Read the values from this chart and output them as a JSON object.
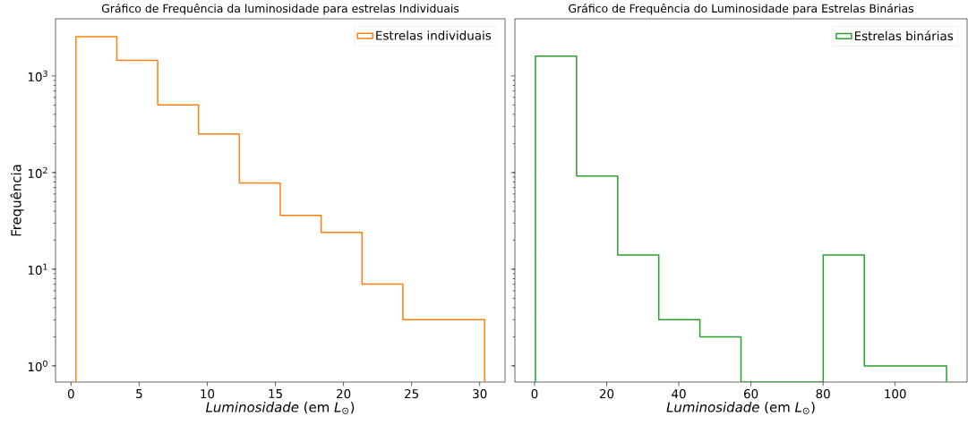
{
  "chart_data": [
    {
      "type": "histogram",
      "title": "Gráfico de Frequência da luminosidade para estrelas Individuais",
      "xlabel": "*Luminosidade* (em *L*$_{⊙}$)",
      "ylabel": "Frequência",
      "bins": [
        0.36,
        3.36,
        6.36,
        9.36,
        12.36,
        15.36,
        18.36,
        21.36,
        24.36,
        27.36,
        30.36
      ],
      "series": [
        {
          "name": "Estrelas individuais",
          "color": "#ff7f0e",
          "values": [
            2550,
            1450,
            500,
            250,
            78,
            36,
            24,
            7,
            3,
            3
          ]
        }
      ],
      "xlim": [
        -1.14,
        31.86
      ],
      "ylim": [
        0.68,
        3900
      ],
      "xticks": [
        0,
        5,
        10,
        15,
        20,
        25,
        30
      ],
      "yticks": [
        {
          "value": 1,
          "label": "10$^{0}$"
        },
        {
          "value": 10,
          "label": "10$^{1}$"
        },
        {
          "value": 100,
          "label": "10$^{2}$"
        },
        {
          "value": 1000,
          "label": "10$^{3}$"
        }
      ],
      "log": "y",
      "legend": "top right"
    },
    {
      "type": "histogram",
      "title": "Gráfico de Frequência do Luminosidade para Estrelas Binárias",
      "xlabel": "*Luminosidade* (em *L*$_{⊙}$)",
      "bins": [
        0.25,
        11.65,
        23.05,
        34.45,
        45.85,
        57.25,
        68.65,
        80.05,
        91.45,
        102.85,
        114.25
      ],
      "series": [
        {
          "name": "Estrelas binárias",
          "color": "#2ca02c",
          "values": [
            1600,
            92,
            14,
            3,
            2,
            null,
            null,
            14,
            1,
            1
          ]
        }
      ],
      "xlim": [
        -5.45,
        119.95
      ],
      "ylim": [
        0.68,
        3900
      ],
      "xticks": [
        0,
        20,
        40,
        60,
        80,
        100
      ],
      "yticks": [
        {
          "value": 1,
          "label": null
        },
        {
          "value": 10,
          "label": null
        },
        {
          "value": 100,
          "label": null
        },
        {
          "value": 1000,
          "label": null
        }
      ],
      "log": "y",
      "legend": "top right",
      "tick_labels": "x"
    }
  ]
}
